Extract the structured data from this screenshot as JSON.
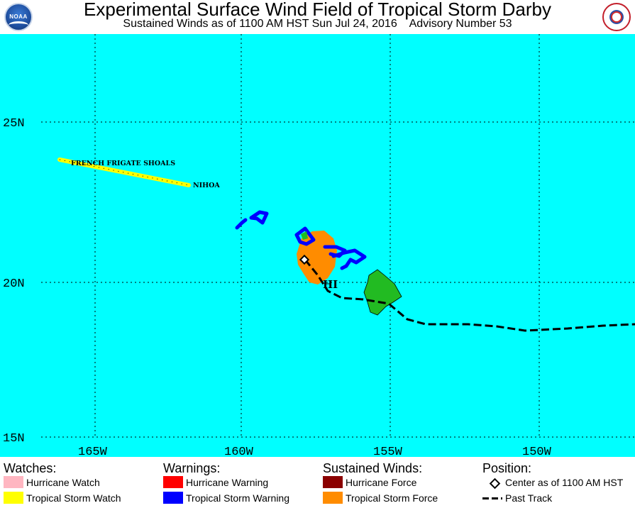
{
  "header": {
    "title": "Experimental Surface Wind Field of Tropical Storm Darby",
    "subtitle": "Sustained Winds as of 1100 AM HST Sun Jul 24, 2016    Advisory Number 53",
    "left_logo_text": "NOAA",
    "left_logo_icon": "noaa-logo-icon",
    "right_logo_icon": "nws-logo-icon"
  },
  "map": {
    "ocean_color": "#00ffff",
    "grid_color": "#000000",
    "lat_labels": [
      "25N",
      "20N",
      "15N"
    ],
    "lon_labels": [
      "165W",
      "160W",
      "155W",
      "150W"
    ],
    "place_labels": {
      "french_frigate_shoals": "FRENCH FRIGATE SHOALS",
      "nihoa": "NIHOA",
      "hawaii": "HI"
    },
    "storm_center": {
      "lat": 20.8,
      "lon": -157.8
    },
    "colors": {
      "tropical_storm_watch": "#ffff00",
      "tropical_storm_warning": "#0000ff",
      "tropical_storm_force": "#ff8c00",
      "land": "#22bb22"
    }
  },
  "legend": {
    "watches": {
      "heading": "Watches:",
      "hurricane_watch": "Hurricane Watch",
      "tropical_storm_watch": "Tropical Storm Watch"
    },
    "warnings": {
      "heading": "Warnings:",
      "hurricane_warning": "Hurricane Warning",
      "tropical_storm_warning": "Tropical Storm Warning"
    },
    "winds": {
      "heading": "Sustained Winds:",
      "hurricane_force": "Hurricane Force",
      "tropical_storm_force": "Tropical Storm Force"
    },
    "position": {
      "heading": "Position:",
      "center": "Center as of 1100 AM HST",
      "past_track": "Past Track"
    },
    "colors": {
      "hurricane_watch": "#ffb6c1",
      "tropical_storm_watch": "#ffff00",
      "hurricane_warning": "#ff0000",
      "tropical_storm_warning": "#0000ff",
      "hurricane_force": "#8b0000",
      "tropical_storm_force": "#ff8c00"
    }
  }
}
